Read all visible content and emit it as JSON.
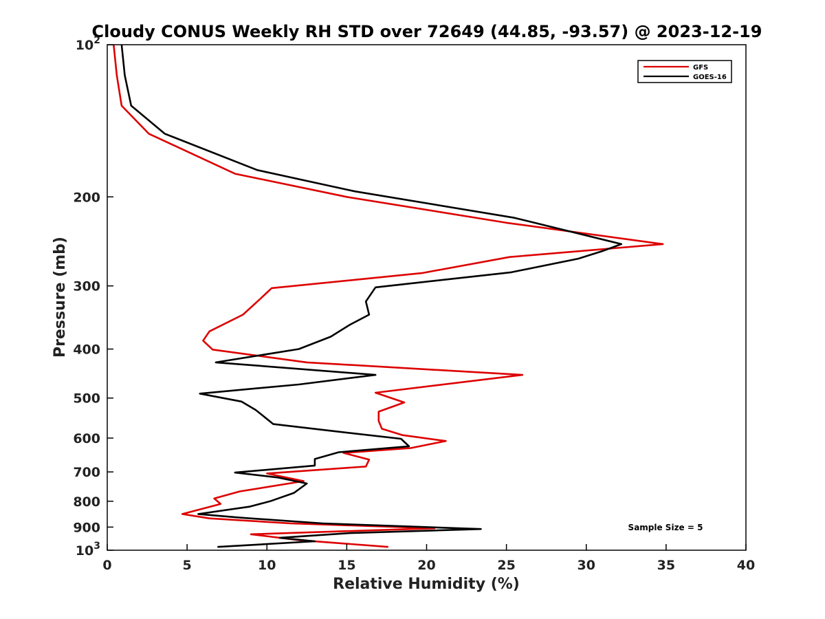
{
  "chart_data": {
    "type": "line",
    "title": "Cloudy CONUS Weekly RH STD over 72649 (44.85, -93.57) @ 2023-12-19",
    "xlabel": "Relative Humidity (%)",
    "ylabel": "Pressure (mb)",
    "xlim": [
      0,
      40
    ],
    "ylim": [
      100,
      1000
    ],
    "y_scale": "log",
    "y_reversed": true,
    "grid": false,
    "legend_position": "top-right",
    "x_ticks": [
      "0",
      "5",
      "10",
      "15",
      "20",
      "25",
      "30",
      "35",
      "40"
    ],
    "y_ticks": [
      {
        "value": 100,
        "base": "10",
        "exp": "2"
      },
      {
        "value": 200,
        "label": "200"
      },
      {
        "value": 300,
        "label": "300"
      },
      {
        "value": 400,
        "label": "400"
      },
      {
        "value": 500,
        "label": "500"
      },
      {
        "value": 600,
        "label": "600"
      },
      {
        "value": 700,
        "label": "700"
      },
      {
        "value": 800,
        "label": "800"
      },
      {
        "value": 900,
        "label": "900"
      },
      {
        "value": 1000,
        "base": "10",
        "exp": "3"
      }
    ],
    "annotation": "Sample Size = 5",
    "series": [
      {
        "name": "GFS",
        "color": "#dd0000",
        "points": [
          {
            "x": 0.4,
            "y": 100
          },
          {
            "x": 0.6,
            "y": 115
          },
          {
            "x": 0.9,
            "y": 132
          },
          {
            "x": 2.6,
            "y": 150
          },
          {
            "x": 8.0,
            "y": 180
          },
          {
            "x": 15.0,
            "y": 200
          },
          {
            "x": 25.0,
            "y": 225
          },
          {
            "x": 34.8,
            "y": 248
          },
          {
            "x": 25.2,
            "y": 263
          },
          {
            "x": 19.7,
            "y": 283
          },
          {
            "x": 10.3,
            "y": 303
          },
          {
            "x": 9.5,
            "y": 320
          },
          {
            "x": 8.5,
            "y": 342
          },
          {
            "x": 6.4,
            "y": 369
          },
          {
            "x": 6.0,
            "y": 385
          },
          {
            "x": 6.6,
            "y": 401
          },
          {
            "x": 12.5,
            "y": 425
          },
          {
            "x": 26.0,
            "y": 450
          },
          {
            "x": 16.8,
            "y": 488
          },
          {
            "x": 18.6,
            "y": 510
          },
          {
            "x": 17.0,
            "y": 532
          },
          {
            "x": 17.0,
            "y": 555
          },
          {
            "x": 17.2,
            "y": 575
          },
          {
            "x": 18.5,
            "y": 592
          },
          {
            "x": 21.2,
            "y": 608
          },
          {
            "x": 19.0,
            "y": 628
          },
          {
            "x": 14.8,
            "y": 642
          },
          {
            "x": 16.4,
            "y": 662
          },
          {
            "x": 16.2,
            "y": 683
          },
          {
            "x": 10.0,
            "y": 705
          },
          {
            "x": 12.3,
            "y": 730
          },
          {
            "x": 8.3,
            "y": 765
          },
          {
            "x": 6.7,
            "y": 790
          },
          {
            "x": 7.1,
            "y": 810
          },
          {
            "x": 4.7,
            "y": 848
          },
          {
            "x": 6.4,
            "y": 865
          },
          {
            "x": 11.5,
            "y": 885
          },
          {
            "x": 20.5,
            "y": 905
          },
          {
            "x": 9.0,
            "y": 930
          },
          {
            "x": 12.0,
            "y": 955
          },
          {
            "x": 17.6,
            "y": 985
          }
        ]
      },
      {
        "name": "GOES-16",
        "color": "#000000",
        "points": [
          {
            "x": 0.9,
            "y": 100
          },
          {
            "x": 1.1,
            "y": 115
          },
          {
            "x": 1.5,
            "y": 132
          },
          {
            "x": 3.6,
            "y": 150
          },
          {
            "x": 9.4,
            "y": 177
          },
          {
            "x": 15.5,
            "y": 195
          },
          {
            "x": 25.5,
            "y": 220
          },
          {
            "x": 32.2,
            "y": 248
          },
          {
            "x": 31.0,
            "y": 256
          },
          {
            "x": 29.5,
            "y": 265
          },
          {
            "x": 25.3,
            "y": 282
          },
          {
            "x": 16.8,
            "y": 302
          },
          {
            "x": 16.2,
            "y": 322
          },
          {
            "x": 16.4,
            "y": 342
          },
          {
            "x": 15.2,
            "y": 358
          },
          {
            "x": 14.0,
            "y": 378
          },
          {
            "x": 12.0,
            "y": 400
          },
          {
            "x": 6.8,
            "y": 425
          },
          {
            "x": 16.8,
            "y": 450
          },
          {
            "x": 12.0,
            "y": 470
          },
          {
            "x": 5.8,
            "y": 490
          },
          {
            "x": 8.4,
            "y": 508
          },
          {
            "x": 9.3,
            "y": 528
          },
          {
            "x": 10.0,
            "y": 550
          },
          {
            "x": 10.4,
            "y": 563
          },
          {
            "x": 13.9,
            "y": 580
          },
          {
            "x": 18.4,
            "y": 602
          },
          {
            "x": 18.9,
            "y": 623
          },
          {
            "x": 14.5,
            "y": 640
          },
          {
            "x": 13.0,
            "y": 660
          },
          {
            "x": 13.0,
            "y": 680
          },
          {
            "x": 8.0,
            "y": 702
          },
          {
            "x": 10.7,
            "y": 718
          },
          {
            "x": 12.5,
            "y": 738
          },
          {
            "x": 11.7,
            "y": 770
          },
          {
            "x": 10.2,
            "y": 800
          },
          {
            "x": 8.9,
            "y": 820
          },
          {
            "x": 5.7,
            "y": 848
          },
          {
            "x": 8.3,
            "y": 862
          },
          {
            "x": 13.5,
            "y": 885
          },
          {
            "x": 23.4,
            "y": 908
          },
          {
            "x": 15.2,
            "y": 925
          },
          {
            "x": 10.8,
            "y": 945
          },
          {
            "x": 13.0,
            "y": 960
          },
          {
            "x": 6.9,
            "y": 985
          }
        ]
      }
    ]
  }
}
